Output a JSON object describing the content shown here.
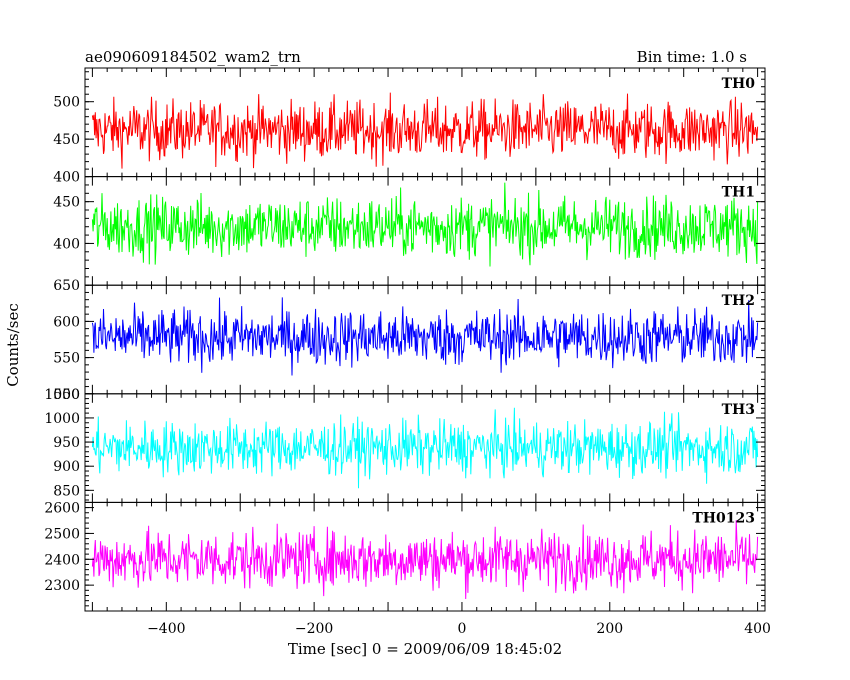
{
  "header": {
    "left_title": "ae090609184502_wam2_trn",
    "right_title": "Bin time: 1.0 s"
  },
  "chart_data": {
    "type": "line",
    "ylabel": "Counts/sec",
    "xlabel": "Time [sec] 0 = 2009/06/09 18:45:02",
    "xlim": [
      -510,
      410
    ],
    "x_ticks": [
      "−400",
      "−200",
      "0",
      "200",
      "400"
    ],
    "x_tick_values": [
      -400,
      -200,
      0,
      200,
      400
    ],
    "x_start": -500,
    "x_end": 400,
    "bin_time": 1.0,
    "panels": [
      {
        "name": "TH0",
        "color": "#ff0000",
        "ylim": [
          400,
          545
        ],
        "y_ticks": [
          400,
          450,
          500
        ],
        "mean": 462,
        "amplitude": 28
      },
      {
        "name": "TH1",
        "color": "#00ff00",
        "ylim": [
          350,
          480
        ],
        "y_ticks": [
          400,
          450
        ],
        "mean": 420,
        "amplitude": 26
      },
      {
        "name": "TH2",
        "color": "#0000ff",
        "ylim": [
          500,
          650
        ],
        "y_ticks": [
          500,
          550,
          600,
          650
        ],
        "mean": 578,
        "amplitude": 28
      },
      {
        "name": "TH3",
        "color": "#00ffff",
        "ylim": [
          825,
          1050
        ],
        "y_ticks": [
          850,
          900,
          950,
          1000,
          1050
        ],
        "mean": 938,
        "amplitude": 40
      },
      {
        "name": "TH0123",
        "color": "#ff00ff",
        "ylim": [
          2200,
          2620
        ],
        "y_ticks": [
          2300,
          2400,
          2500,
          2600
        ],
        "mean": 2400,
        "amplitude": 80
      }
    ]
  }
}
